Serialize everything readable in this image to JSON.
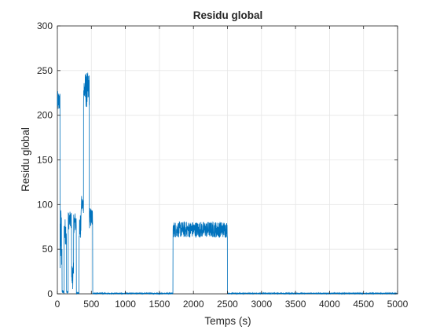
{
  "chart_data": {
    "type": "line",
    "title": "Residu global",
    "xlabel": "Temps (s)",
    "ylabel": "Residu global",
    "xlim": [
      0,
      5000
    ],
    "ylim": [
      0,
      300
    ],
    "xticks": [
      0,
      500,
      1000,
      1500,
      2000,
      2500,
      3000,
      3500,
      4000,
      4500,
      5000
    ],
    "yticks": [
      0,
      50,
      100,
      150,
      200,
      250,
      300
    ],
    "grid": true,
    "legend": "none",
    "color": "#0072BD",
    "segments": [
      {
        "x_start": 0,
        "x_end": 40,
        "level": 215,
        "amplitude": 12
      },
      {
        "x_start": 40,
        "x_end": 70,
        "level": 60,
        "amplitude": 40
      },
      {
        "x_start": 70,
        "x_end": 100,
        "level": 2,
        "amplitude": 2
      },
      {
        "x_start": 100,
        "x_end": 135,
        "level": 70,
        "amplitude": 15
      },
      {
        "x_start": 135,
        "x_end": 160,
        "level": 2,
        "amplitude": 2
      },
      {
        "x_start": 160,
        "x_end": 210,
        "level": 82,
        "amplitude": 10
      },
      {
        "x_start": 210,
        "x_end": 240,
        "level": 20,
        "amplitude": 15
      },
      {
        "x_start": 240,
        "x_end": 280,
        "level": 80,
        "amplitude": 12
      },
      {
        "x_start": 280,
        "x_end": 320,
        "level": 1,
        "amplitude": 1
      },
      {
        "x_start": 320,
        "x_end": 350,
        "level": 75,
        "amplitude": 15
      },
      {
        "x_start": 350,
        "x_end": 385,
        "level": 100,
        "amplitude": 10
      },
      {
        "x_start": 385,
        "x_end": 470,
        "level": 228,
        "amplitude": 20
      },
      {
        "x_start": 470,
        "x_end": 520,
        "level": 85,
        "amplitude": 12
      },
      {
        "x_start": 520,
        "x_end": 1700,
        "level": 0.5,
        "amplitude": 0.5
      },
      {
        "x_start": 1700,
        "x_end": 2500,
        "level": 72,
        "amplitude": 9
      },
      {
        "x_start": 2500,
        "x_end": 5000,
        "level": 0.5,
        "amplitude": 0.5
      }
    ]
  }
}
